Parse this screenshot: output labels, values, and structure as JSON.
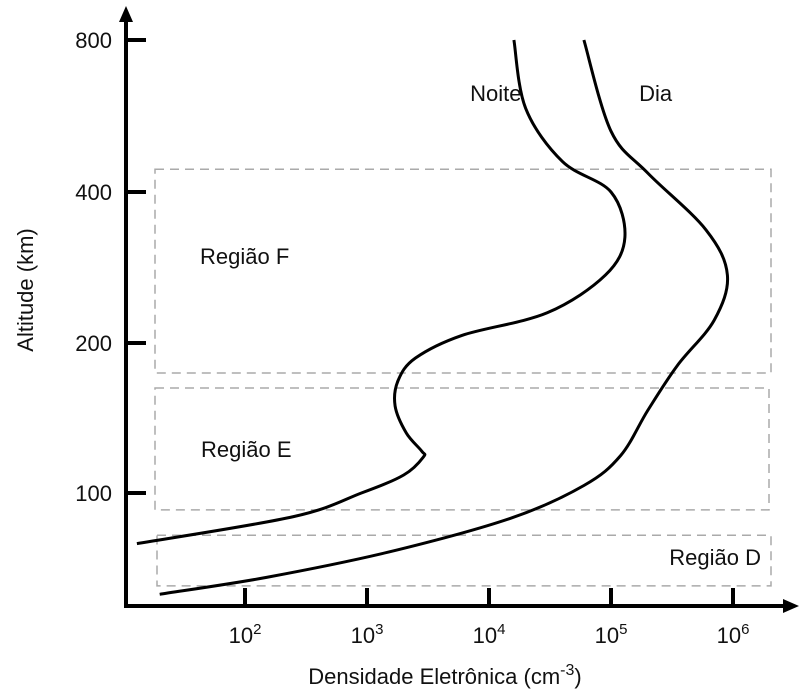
{
  "chart_data": {
    "type": "line",
    "title": "",
    "xlabel": "Densidade Eletrônica (cm",
    "xlabel_sup": "-3",
    "xlabel_end": ")",
    "ylabel": "Altitude (km)",
    "x_scale": "log",
    "x_ticks": [
      {
        "base": "10",
        "exp": "2"
      },
      {
        "base": "10",
        "exp": "3"
      },
      {
        "base": "10",
        "exp": "4"
      },
      {
        "base": "10",
        "exp": "5"
      },
      {
        "base": "10",
        "exp": "6"
      }
    ],
    "y_ticks": [
      "100",
      "200",
      "400",
      "800"
    ],
    "grid": false,
    "series": [
      {
        "name": "Noite",
        "points": [
          {
            "x": 13,
            "y": 70
          },
          {
            "x": 250,
            "y": 86
          },
          {
            "x": 900,
            "y": 100
          },
          {
            "x": 2000,
            "y": 112
          },
          {
            "x": 2900,
            "y": 124
          },
          {
            "x": 2800,
            "y": 128
          },
          {
            "x": 2100,
            "y": 140
          },
          {
            "x": 1700,
            "y": 158
          },
          {
            "x": 1800,
            "y": 175
          },
          {
            "x": 2500,
            "y": 190
          },
          {
            "x": 6000,
            "y": 210
          },
          {
            "x": 30000,
            "y": 240
          },
          {
            "x": 90000,
            "y": 290
          },
          {
            "x": 130000,
            "y": 340
          },
          {
            "x": 100000,
            "y": 400
          },
          {
            "x": 40000,
            "y": 480
          },
          {
            "x": 20000,
            "y": 620
          },
          {
            "x": 16000,
            "y": 800
          }
        ]
      },
      {
        "name": "Dia",
        "points": [
          {
            "x": 20,
            "y": 40
          },
          {
            "x": 150,
            "y": 50
          },
          {
            "x": 1500,
            "y": 65
          },
          {
            "x": 15000,
            "y": 85
          },
          {
            "x": 60000,
            "y": 105
          },
          {
            "x": 120000,
            "y": 125
          },
          {
            "x": 200000,
            "y": 155
          },
          {
            "x": 350000,
            "y": 185
          },
          {
            "x": 700000,
            "y": 230
          },
          {
            "x": 900000,
            "y": 290
          },
          {
            "x": 600000,
            "y": 350
          },
          {
            "x": 200000,
            "y": 450
          },
          {
            "x": 100000,
            "y": 560
          },
          {
            "x": 60000,
            "y": 800
          }
        ]
      }
    ],
    "regions": [
      {
        "label": "Região F",
        "y_range": [
          180,
          460
        ]
      },
      {
        "label": "Região E",
        "y_range": [
          90,
          170
        ]
      },
      {
        "label": "Região D",
        "y_range": [
          45,
          75
        ]
      }
    ],
    "curve_labels": [
      {
        "text": "Noite",
        "x": 7000,
        "y": 640
      },
      {
        "text": "Dia",
        "x": 170000,
        "y": 640
      }
    ]
  }
}
